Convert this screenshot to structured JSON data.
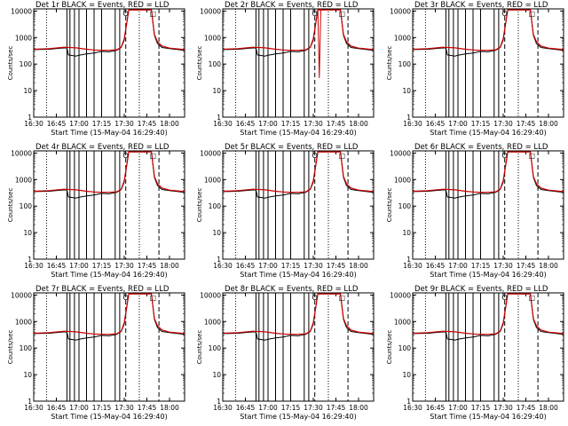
{
  "colors": {
    "events": "#000000",
    "lld": "#cc0000",
    "background": "#ffffff"
  },
  "shared": {
    "xlabel": "Start Time (15-May-04 16:29:40)",
    "ylabel": "Counts/sec",
    "x_ticks": [
      "16:30",
      "16:45",
      "17:00",
      "17:15",
      "17:30",
      "17:45",
      "18:00"
    ],
    "x_tick_minutes": [
      0,
      15,
      30,
      45,
      60,
      75,
      90
    ],
    "xlim_minutes": [
      0,
      100
    ],
    "y_ticks": [
      "1",
      "10",
      "100",
      "1000",
      "10000"
    ],
    "y_tick_values": [
      1,
      10,
      100,
      1000,
      10000
    ],
    "ylim": [
      1,
      12000
    ],
    "y_scale": "log",
    "dotted_lines_minutes": [
      8.5,
      70
    ],
    "dashed_lines_minutes": [
      61,
      83
    ],
    "markers": [
      {
        "symbol": "O",
        "minute": 61
      },
      {
        "symbol": "□",
        "minute": 79
      }
    ]
  },
  "chart_data": [
    {
      "type": "line",
      "title": "Det 1r BLACK = Events, RED = LLD",
      "series": [
        {
          "name": "Events",
          "color": "#000000",
          "x": [
            0,
            10,
            18,
            22,
            23,
            28,
            30,
            35,
            40,
            45,
            50,
            55,
            58,
            60,
            63,
            78,
            80,
            82,
            85,
            90,
            100
          ],
          "y": [
            350,
            360,
            400,
            410,
            220,
            200,
            215,
            240,
            260,
            300,
            290,
            330,
            420,
            800,
            11000,
            11000,
            1200,
            600,
            420,
            380,
            330
          ]
        },
        {
          "name": "LLD",
          "color": "#cc0000",
          "x": [
            0,
            10,
            20,
            28,
            35,
            40,
            45,
            50,
            55,
            58,
            60,
            63,
            78,
            80,
            82,
            85,
            90,
            100
          ],
          "y": [
            360,
            380,
            430,
            410,
            360,
            340,
            330,
            330,
            345,
            430,
            900,
            11000,
            11000,
            1300,
            700,
            480,
            400,
            350
          ]
        }
      ]
    },
    {
      "type": "line",
      "title": "Det 2r BLACK = Events, RED = LLD",
      "series": [
        {
          "name": "Events",
          "color": "#000000",
          "x": [
            0,
            10,
            18,
            22,
            23,
            28,
            30,
            35,
            40,
            45,
            50,
            55,
            58,
            60,
            63,
            78,
            80,
            82,
            85,
            90,
            100
          ],
          "y": [
            350,
            360,
            400,
            410,
            220,
            200,
            215,
            240,
            260,
            300,
            290,
            330,
            420,
            800,
            11000,
            11000,
            1200,
            600,
            420,
            380,
            330
          ]
        },
        {
          "name": "LLD",
          "color": "#cc0000",
          "x": [
            0,
            10,
            20,
            28,
            35,
            40,
            45,
            50,
            55,
            58,
            60,
            63,
            78,
            80,
            82,
            85,
            90,
            100
          ],
          "y": [
            360,
            380,
            430,
            410,
            360,
            340,
            330,
            330,
            345,
            430,
            900,
            11000,
            11000,
            1300,
            700,
            480,
            400,
            350
          ]
        }
      ]
    },
    {
      "type": "line",
      "title": "Det 3r BLACK = Events, RED = LLD",
      "series": [
        {
          "name": "Events",
          "color": "#000000",
          "x": [
            0,
            10,
            18,
            22,
            23,
            28,
            30,
            35,
            40,
            45,
            50,
            55,
            58,
            60,
            63,
            78,
            80,
            82,
            85,
            90,
            100
          ],
          "y": [
            350,
            360,
            400,
            410,
            220,
            200,
            215,
            240,
            260,
            300,
            290,
            330,
            420,
            800,
            11000,
            11000,
            1200,
            600,
            420,
            380,
            330
          ]
        },
        {
          "name": "LLD",
          "color": "#cc0000",
          "x": [
            0,
            10,
            20,
            28,
            35,
            40,
            45,
            50,
            55,
            58,
            60,
            63,
            78,
            80,
            82,
            85,
            90,
            100
          ],
          "y": [
            360,
            380,
            430,
            410,
            360,
            340,
            330,
            330,
            345,
            430,
            900,
            11000,
            11000,
            1300,
            700,
            480,
            400,
            350
          ]
        }
      ]
    },
    {
      "type": "line",
      "title": "Det 4r BLACK = Events, RED = LLD",
      "series": [
        {
          "name": "Events",
          "color": "#000000",
          "x": [
            0,
            10,
            18,
            22,
            23,
            28,
            30,
            35,
            40,
            45,
            50,
            55,
            58,
            60,
            63,
            78,
            80,
            82,
            85,
            90,
            100
          ],
          "y": [
            350,
            360,
            400,
            410,
            220,
            200,
            215,
            240,
            260,
            300,
            290,
            330,
            420,
            800,
            11000,
            11000,
            1200,
            600,
            420,
            380,
            330
          ]
        },
        {
          "name": "LLD",
          "color": "#cc0000",
          "x": [
            0,
            10,
            20,
            28,
            35,
            40,
            45,
            50,
            55,
            58,
            60,
            63,
            78,
            80,
            82,
            85,
            90,
            100
          ],
          "y": [
            360,
            380,
            430,
            410,
            360,
            340,
            330,
            330,
            345,
            430,
            900,
            11000,
            11000,
            1300,
            700,
            480,
            400,
            350
          ]
        }
      ]
    },
    {
      "type": "line",
      "title": "Det 5r BLACK = Events, RED = LLD",
      "series": [
        {
          "name": "Events",
          "color": "#000000",
          "x": [
            0,
            10,
            18,
            22,
            23,
            28,
            30,
            35,
            40,
            45,
            50,
            55,
            58,
            60,
            63,
            78,
            80,
            82,
            85,
            90,
            100
          ],
          "y": [
            350,
            360,
            400,
            410,
            220,
            200,
            215,
            240,
            260,
            300,
            290,
            330,
            420,
            800,
            11000,
            11000,
            1200,
            600,
            420,
            380,
            330
          ]
        },
        {
          "name": "LLD",
          "color": "#cc0000",
          "x": [
            0,
            10,
            20,
            28,
            35,
            40,
            45,
            50,
            55,
            58,
            60,
            63,
            78,
            80,
            82,
            85,
            90,
            100
          ],
          "y": [
            360,
            380,
            430,
            410,
            360,
            340,
            330,
            330,
            345,
            430,
            900,
            11000,
            11000,
            1300,
            700,
            480,
            400,
            350
          ]
        }
      ]
    },
    {
      "type": "line",
      "title": "Det 6r BLACK = Events, RED = LLD",
      "series": [
        {
          "name": "Events",
          "color": "#000000",
          "x": [
            0,
            10,
            18,
            22,
            23,
            28,
            30,
            35,
            40,
            45,
            50,
            55,
            58,
            60,
            63,
            78,
            80,
            82,
            85,
            90,
            100
          ],
          "y": [
            350,
            360,
            400,
            410,
            220,
            200,
            215,
            240,
            260,
            300,
            290,
            330,
            420,
            800,
            11000,
            11000,
            1200,
            600,
            420,
            380,
            330
          ]
        },
        {
          "name": "LLD",
          "color": "#cc0000",
          "x": [
            0,
            10,
            20,
            28,
            35,
            40,
            45,
            50,
            55,
            58,
            60,
            63,
            78,
            80,
            82,
            85,
            90,
            100
          ],
          "y": [
            360,
            380,
            430,
            410,
            360,
            340,
            330,
            330,
            345,
            430,
            900,
            11000,
            11000,
            1300,
            700,
            480,
            400,
            350
          ]
        }
      ]
    },
    {
      "type": "line",
      "title": "Det 7r BLACK = Events, RED = LLD",
      "series": [
        {
          "name": "Events",
          "color": "#000000",
          "x": [
            0,
            10,
            18,
            22,
            23,
            28,
            30,
            35,
            40,
            45,
            50,
            55,
            58,
            60,
            63,
            78,
            80,
            82,
            85,
            90,
            100
          ],
          "y": [
            350,
            360,
            400,
            410,
            220,
            200,
            215,
            240,
            260,
            300,
            290,
            330,
            420,
            800,
            11000,
            11000,
            1200,
            600,
            420,
            380,
            330
          ]
        },
        {
          "name": "LLD",
          "color": "#cc0000",
          "x": [
            0,
            10,
            20,
            28,
            35,
            40,
            45,
            50,
            55,
            58,
            60,
            63,
            78,
            80,
            82,
            85,
            90,
            100
          ],
          "y": [
            360,
            380,
            430,
            410,
            360,
            340,
            330,
            330,
            345,
            430,
            900,
            11000,
            11000,
            1300,
            700,
            480,
            400,
            350
          ]
        }
      ]
    },
    {
      "type": "line",
      "title": "Det 8r BLACK = Events, RED = LLD",
      "series": [
        {
          "name": "Events",
          "color": "#000000",
          "x": [
            0,
            10,
            18,
            22,
            23,
            28,
            30,
            35,
            40,
            45,
            50,
            55,
            58,
            60,
            63,
            78,
            80,
            82,
            85,
            90,
            100
          ],
          "y": [
            350,
            360,
            400,
            410,
            220,
            200,
            215,
            240,
            260,
            300,
            290,
            330,
            420,
            800,
            11000,
            11000,
            1200,
            600,
            420,
            380,
            330
          ]
        },
        {
          "name": "LLD",
          "color": "#cc0000",
          "x": [
            0,
            10,
            20,
            28,
            35,
            40,
            45,
            50,
            55,
            58,
            60,
            63,
            78,
            80,
            82,
            85,
            90,
            100
          ],
          "y": [
            360,
            380,
            430,
            410,
            360,
            340,
            330,
            330,
            345,
            430,
            900,
            11000,
            11000,
            1300,
            700,
            480,
            400,
            350
          ]
        }
      ]
    },
    {
      "type": "line",
      "title": "Det 9r BLACK = Events, RED = LLD",
      "series": [
        {
          "name": "Events",
          "color": "#000000",
          "x": [
            0,
            10,
            18,
            22,
            23,
            28,
            30,
            35,
            40,
            45,
            50,
            55,
            58,
            60,
            63,
            78,
            80,
            82,
            85,
            90,
            100
          ],
          "y": [
            350,
            360,
            400,
            410,
            220,
            200,
            215,
            240,
            260,
            300,
            290,
            330,
            420,
            800,
            11000,
            11000,
            1200,
            600,
            420,
            380,
            330
          ]
        },
        {
          "name": "LLD",
          "color": "#cc0000",
          "x": [
            0,
            10,
            20,
            28,
            35,
            40,
            45,
            50,
            55,
            58,
            60,
            63,
            78,
            80,
            82,
            85,
            90,
            100
          ],
          "y": [
            360,
            380,
            430,
            410,
            360,
            340,
            330,
            330,
            345,
            430,
            900,
            11000,
            11000,
            1300,
            700,
            480,
            400,
            350
          ]
        }
      ]
    }
  ]
}
